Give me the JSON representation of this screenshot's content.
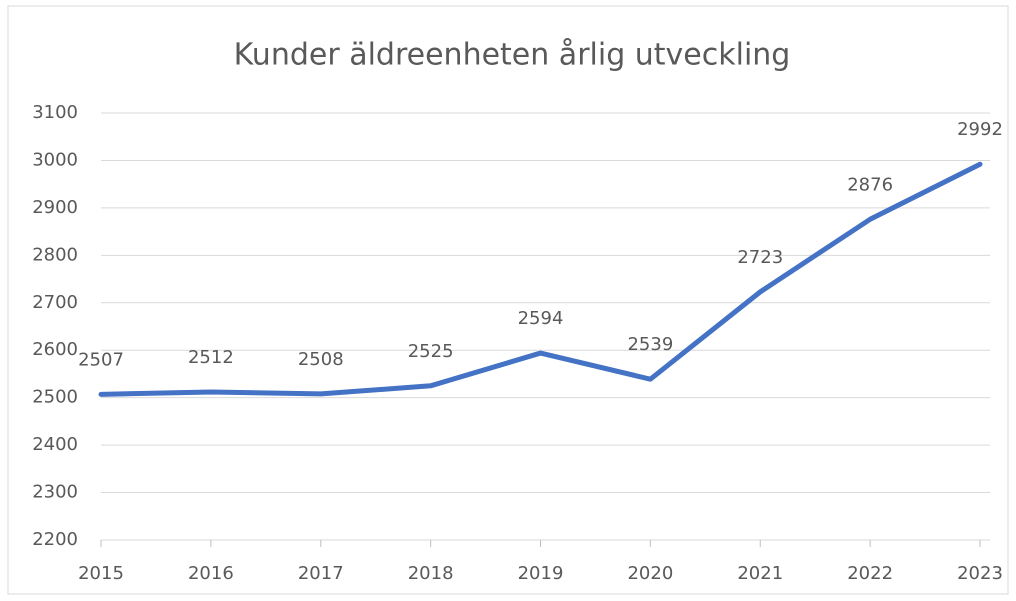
{
  "chart_data": {
    "type": "line",
    "title": "Kunder äldreenheten årlig utveckling",
    "categories": [
      "2015",
      "2016",
      "2017",
      "2018",
      "2019",
      "2020",
      "2021",
      "2022",
      "2023"
    ],
    "series": [
      {
        "name": "Kunder",
        "color": "#4472c4",
        "values": [
          2507,
          2512,
          2508,
          2525,
          2594,
          2539,
          2723,
          2876,
          2992
        ]
      }
    ],
    "ylim": [
      2200,
      3100
    ],
    "yticks": [
      2200,
      2300,
      2400,
      2500,
      2600,
      2700,
      2800,
      2900,
      3000,
      3100
    ],
    "grid": true
  }
}
